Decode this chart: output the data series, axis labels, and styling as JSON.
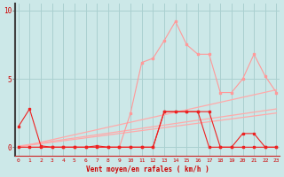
{
  "x": [
    0,
    1,
    2,
    3,
    4,
    5,
    6,
    7,
    8,
    9,
    10,
    11,
    12,
    13,
    14,
    15,
    16,
    17,
    18,
    19,
    20,
    21,
    22,
    23
  ],
  "line_pink_y": [
    0.0,
    0.0,
    0.0,
    0.0,
    0.0,
    0.0,
    0.0,
    0.0,
    0.0,
    0.0,
    2.5,
    6.2,
    6.5,
    7.8,
    9.2,
    7.5,
    6.8,
    6.8,
    4.0,
    4.0,
    5.0,
    6.8,
    5.2,
    4.0
  ],
  "line_red1_y": [
    1.5,
    2.8,
    0.1,
    0.0,
    0.0,
    0.0,
    0.0,
    0.1,
    0.0,
    0.0,
    0.0,
    0.0,
    0.0,
    2.6,
    2.6,
    2.6,
    2.6,
    2.6,
    0.0,
    0.0,
    0.0,
    0.0,
    0.0,
    0.0
  ],
  "line_red2_y": [
    0.0,
    0.0,
    0.0,
    0.0,
    0.0,
    0.0,
    0.0,
    0.0,
    0.0,
    0.0,
    0.0,
    0.0,
    0.0,
    2.6,
    2.6,
    2.6,
    2.6,
    0.0,
    0.0,
    0.0,
    1.0,
    1.0,
    0.0,
    0.0
  ],
  "trend1_x": [
    0,
    23
  ],
  "trend1_y": [
    0.0,
    4.2
  ],
  "trend2_x": [
    0,
    23
  ],
  "trend2_y": [
    0.08,
    2.8
  ],
  "trend3_x": [
    0,
    23
  ],
  "trend3_y": [
    0.04,
    2.5
  ],
  "background_color": "#cce8e8",
  "grid_color": "#aad0d0",
  "line_pink_color": "#ff9999",
  "line_red_color": "#ee2222",
  "trend_color": "#ffaaaa",
  "xlabel": "Vent moyen/en rafales ( km/h )",
  "yticks": [
    0,
    5,
    10
  ],
  "xticks": [
    0,
    1,
    2,
    3,
    4,
    5,
    6,
    7,
    8,
    9,
    10,
    11,
    12,
    13,
    14,
    15,
    16,
    17,
    18,
    19,
    20,
    21,
    22,
    23
  ],
  "xlim": [
    -0.3,
    23.3
  ],
  "ylim": [
    -0.6,
    10.5
  ]
}
